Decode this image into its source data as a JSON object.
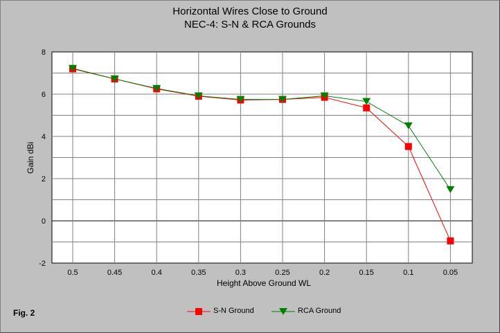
{
  "chart_data": {
    "type": "line",
    "title": "Horizontal Wires Close to Ground",
    "subtitle": "NEC-4:  S-N & RCA Grounds",
    "xlabel": "Height Above Ground WL",
    "ylabel": "Gain dBi",
    "x": [
      "0.5",
      "0.45",
      "0.4",
      "0.35",
      "0.3",
      "0.25",
      "0.2",
      "0.15",
      "0.1",
      "0.05"
    ],
    "ylim": [
      -2,
      8
    ],
    "yticks": [
      "8",
      "6",
      "4",
      "2",
      "0",
      "-2"
    ],
    "grid": true,
    "legend_position": "bottom",
    "series": [
      {
        "name": "S-N Ground",
        "color": "#ff0000",
        "marker": "square",
        "values": [
          7.2,
          6.72,
          6.25,
          5.9,
          5.72,
          5.75,
          5.85,
          5.35,
          3.52,
          -0.95
        ]
      },
      {
        "name": "RCA Ground",
        "color": "#008000",
        "marker": "triangle-down",
        "values": [
          7.22,
          6.72,
          6.27,
          5.92,
          5.75,
          5.75,
          5.92,
          5.65,
          4.5,
          1.48
        ]
      }
    ]
  },
  "fig_label": "Fig. 2"
}
